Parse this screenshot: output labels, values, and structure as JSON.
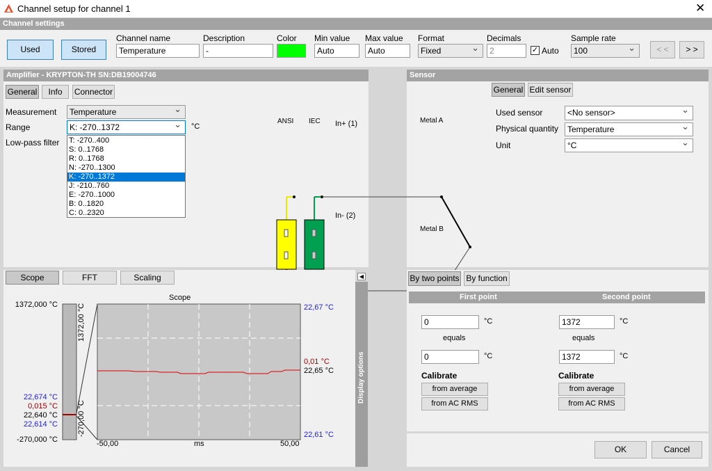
{
  "window": {
    "title": "Channel setup for channel 1"
  },
  "channel_settings": {
    "header": "Channel settings",
    "used": "Used",
    "stored": "Stored",
    "channel_name": {
      "label": "Channel name",
      "value": "Temperature"
    },
    "description": {
      "label": "Description",
      "value": "-"
    },
    "color": {
      "label": "Color"
    },
    "min_value": {
      "label": "Min value",
      "value": "Auto"
    },
    "max_value": {
      "label": "Max value",
      "value": "Auto"
    },
    "format": {
      "label": "Format",
      "value": "Fixed"
    },
    "decimals": {
      "label": "Decimals",
      "value": "2",
      "auto": "Auto"
    },
    "sample_rate": {
      "label": "Sample rate",
      "value": "100"
    },
    "prev": "< <",
    "next": "> >"
  },
  "amplifier": {
    "header": "Amplifier - KRYPTON-TH  SN:DB19004746",
    "tabs": [
      "General",
      "Info",
      "Connector"
    ],
    "measurement": {
      "label": "Measurement",
      "value": "Temperature"
    },
    "range": {
      "label": "Range",
      "value": "K: -270..1372",
      "unit": "°C",
      "options": [
        "T: -270..400",
        "S: 0..1768",
        "R: 0..1768",
        "N: -270..1300",
        "K: -270..1372",
        "J: -210..760",
        "E: -270..1000",
        "B: 0..1820",
        "C: 0..2320"
      ]
    },
    "low_pass": {
      "label": "Low-pass filter"
    },
    "diagram": {
      "ansi": "ANSI",
      "iec": "IEC",
      "in_plus": "In+ (1)",
      "in_minus": "In- (2)",
      "metal_a": "Metal A",
      "metal_b": "Metal B"
    }
  },
  "sensor": {
    "header": "Sensor",
    "tabs": [
      "General",
      "Edit sensor"
    ],
    "used_sensor": {
      "label": "Used sensor",
      "value": "<No sensor>"
    },
    "physical_quantity": {
      "label": "Physical quantity",
      "value": "Temperature"
    },
    "unit": {
      "label": "Unit",
      "value": "°C"
    }
  },
  "scope": {
    "tabs": [
      "Scope",
      "FFT",
      "Scaling"
    ],
    "title": "Scope",
    "left_top": "1372,000 °C",
    "left_labels": [
      "22,674 °C",
      "0,015 °C",
      "22,640 °C",
      "22,614 °C"
    ],
    "left_bottom": "-270,000 °C",
    "bar_top": "1372,00 °C",
    "bar_bottom": "-270,00 °C",
    "right_labels": [
      "22,67 °C",
      "0,01 °C",
      "22,65 °C",
      "22,61 °C"
    ],
    "x_labels": [
      "-50,00",
      "ms",
      "50,00"
    ],
    "display_options": "Display options"
  },
  "calibration": {
    "tabs": [
      "By two points",
      "By function"
    ],
    "first": {
      "header": "First point",
      "input": "0",
      "input_unit": "°C",
      "equals": "equals",
      "output": "0",
      "output_unit": "°C",
      "calibrate": "Calibrate",
      "from_average": "from average",
      "from_ac_rms": "from AC RMS"
    },
    "second": {
      "header": "Second point",
      "input": "1372",
      "input_unit": "°C",
      "equals": "equals",
      "output": "1372",
      "output_unit": "°C",
      "calibrate": "Calibrate",
      "from_average": "from average",
      "from_ac_rms": "from AC RMS"
    }
  },
  "buttons": {
    "ok": "OK",
    "cancel": "Cancel"
  }
}
